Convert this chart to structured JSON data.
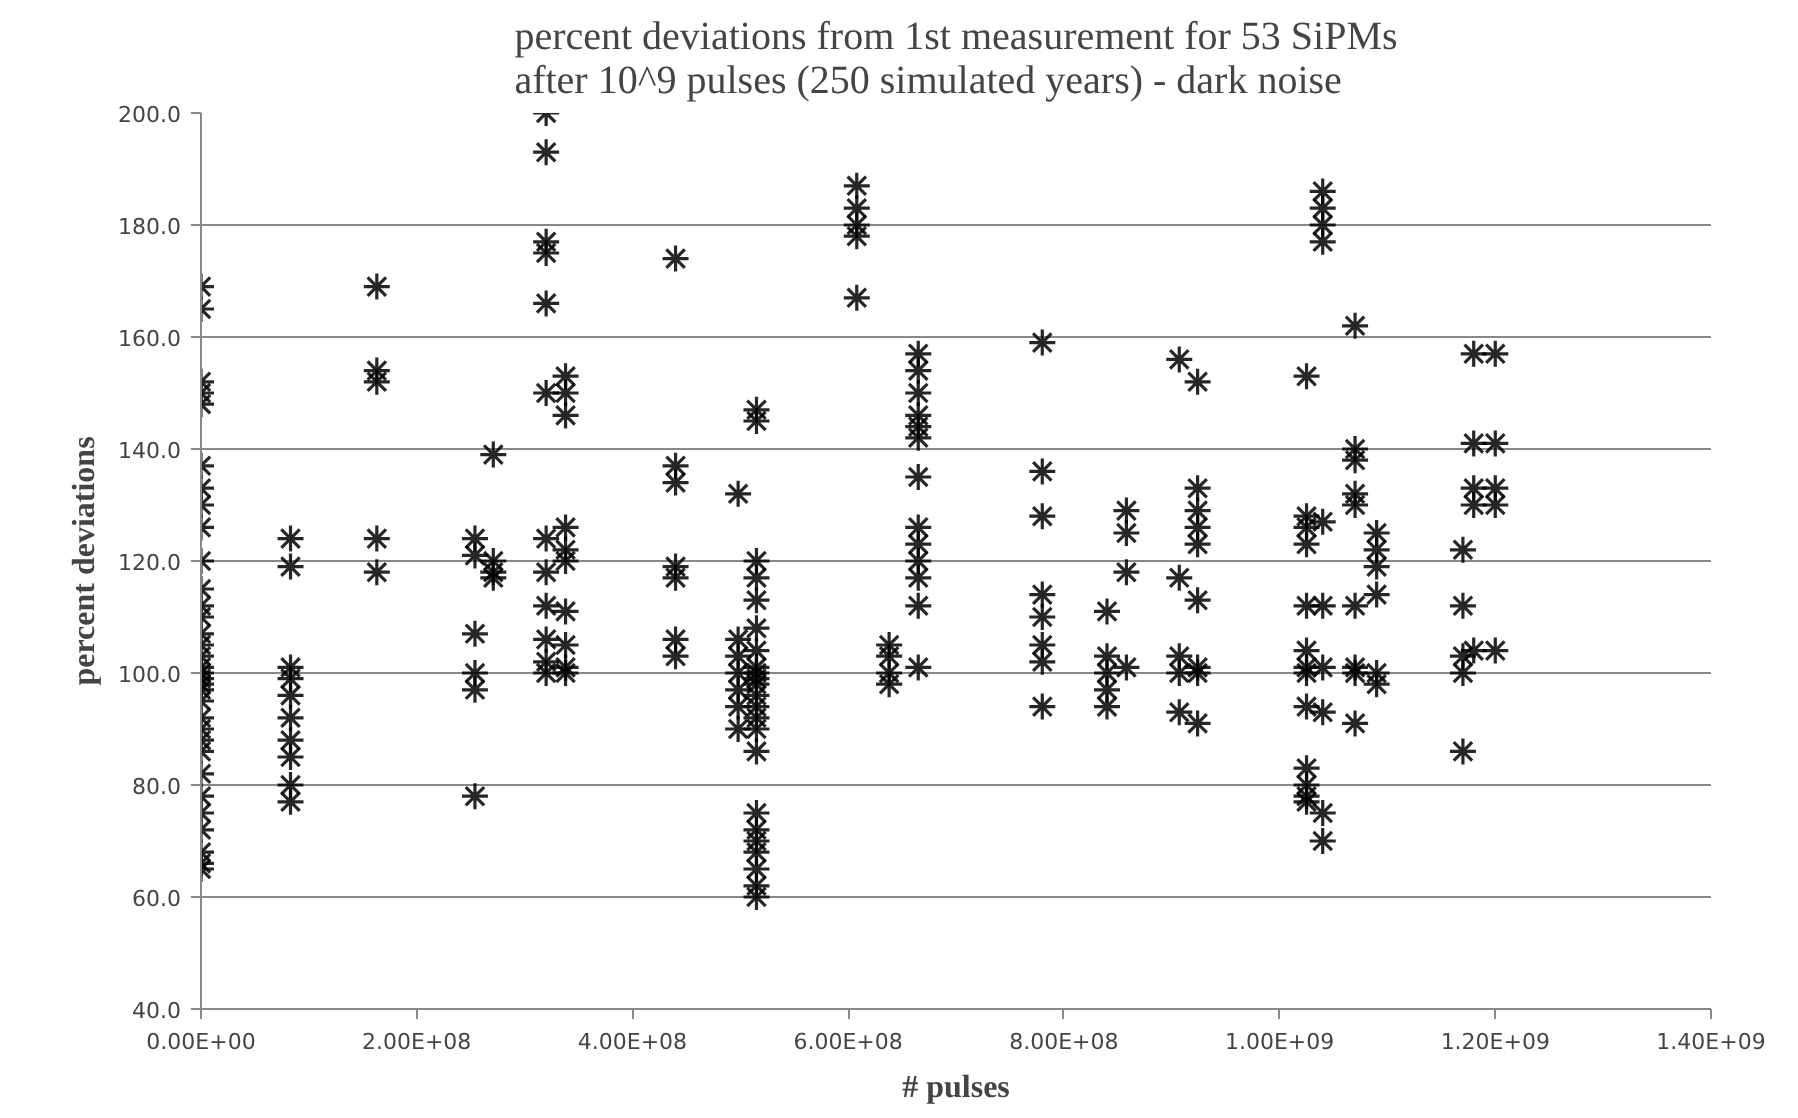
{
  "chart_data": {
    "type": "scatter",
    "title": "percent deviations from 1st measurement for 53 SiPMs\nafter 10^9 pulses (250 simulated years) - dark noise",
    "xlabel": "# pulses",
    "ylabel": "percent deviations",
    "marker": "cross",
    "grid": "y",
    "xlim": [
      0,
      1400000000.0
    ],
    "ylim": [
      40,
      200
    ],
    "xticks": [
      {
        "value": 0,
        "label": "0.00E+00"
      },
      {
        "value": 200000000.0,
        "label": "2.00E+08"
      },
      {
        "value": 400000000.0,
        "label": "4.00E+08"
      },
      {
        "value": 600000000.0,
        "label": "6.00E+08"
      },
      {
        "value": 800000000.0,
        "label": "8.00E+08"
      },
      {
        "value": 1000000000.0,
        "label": "1.00E+09"
      },
      {
        "value": 1200000000.0,
        "label": "1.20E+09"
      },
      {
        "value": 1400000000.0,
        "label": "1.40E+09"
      }
    ],
    "yticks": [
      {
        "value": 40,
        "label": "40.0"
      },
      {
        "value": 60,
        "label": "60.0"
      },
      {
        "value": 80,
        "label": "80.0"
      },
      {
        "value": 100,
        "label": "100.0"
      },
      {
        "value": 120,
        "label": "120.0"
      },
      {
        "value": 140,
        "label": "140.0"
      },
      {
        "value": 160,
        "label": "160.0"
      },
      {
        "value": 180,
        "label": "180.0"
      },
      {
        "value": 200,
        "label": "200.0"
      }
    ],
    "series": [
      {
        "color": "#000000",
        "x": [
          0,
          0,
          0,
          0,
          0,
          0,
          0,
          0,
          0,
          0,
          0,
          0,
          0,
          0,
          0,
          0,
          0,
          0,
          0,
          0,
          0,
          0,
          0,
          0,
          0,
          0,
          0,
          0,
          0,
          0,
          0,
          0,
          0,
          83000000.0,
          83000000.0,
          83000000.0,
          83000000.0,
          83000000.0,
          83000000.0,
          83000000.0,
          83000000.0,
          83000000.0,
          83000000.0,
          163000000.0,
          163000000.0,
          163000000.0,
          163000000.0,
          163000000.0,
          254000000.0,
          254000000.0,
          254000000.0,
          254000000.0,
          254000000.0,
          254000000.0,
          271000000.0,
          271000000.0,
          271000000.0,
          271000000.0,
          320000000.0,
          320000000.0,
          320000000.0,
          320000000.0,
          320000000.0,
          320000000.0,
          320000000.0,
          320000000.0,
          320000000.0,
          320000000.0,
          320000000.0,
          320000000.0,
          338000000.0,
          338000000.0,
          338000000.0,
          338000000.0,
          338000000.0,
          338000000.0,
          338000000.0,
          338000000.0,
          338000000.0,
          338000000.0,
          440000000.0,
          440000000.0,
          440000000.0,
          440000000.0,
          440000000.0,
          440000000.0,
          440000000.0,
          498000000.0,
          498000000.0,
          498000000.0,
          498000000.0,
          498000000.0,
          498000000.0,
          498000000.0,
          515000000.0,
          515000000.0,
          515000000.0,
          515000000.0,
          515000000.0,
          515000000.0,
          515000000.0,
          515000000.0,
          515000000.0,
          515000000.0,
          515000000.0,
          515000000.0,
          515000000.0,
          515000000.0,
          515000000.0,
          515000000.0,
          515000000.0,
          515000000.0,
          515000000.0,
          515000000.0,
          515000000.0,
          515000000.0,
          515000000.0,
          608000000.0,
          608000000.0,
          608000000.0,
          608000000.0,
          608000000.0,
          638000000.0,
          638000000.0,
          638000000.0,
          638000000.0,
          665000000.0,
          665000000.0,
          665000000.0,
          665000000.0,
          665000000.0,
          665000000.0,
          665000000.0,
          665000000.0,
          665000000.0,
          665000000.0,
          665000000.0,
          665000000.0,
          665000000.0,
          780000000.0,
          780000000.0,
          780000000.0,
          780000000.0,
          780000000.0,
          780000000.0,
          780000000.0,
          780000000.0,
          840000000.0,
          840000000.0,
          840000000.0,
          840000000.0,
          840000000.0,
          858000000.0,
          858000000.0,
          858000000.0,
          858000000.0,
          907000000.0,
          907000000.0,
          907000000.0,
          907000000.0,
          907000000.0,
          924000000.0,
          924000000.0,
          924000000.0,
          924000000.0,
          924000000.0,
          924000000.0,
          924000000.0,
          924000000.0,
          924000000.0,
          1025000000.0,
          1025000000.0,
          1025000000.0,
          1025000000.0,
          1025000000.0,
          1025000000.0,
          1025000000.0,
          1025000000.0,
          1025000000.0,
          1025000000.0,
          1025000000.0,
          1025000000.0,
          1025000000.0,
          1040000000.0,
          1040000000.0,
          1040000000.0,
          1040000000.0,
          1040000000.0,
          1040000000.0,
          1040000000.0,
          1040000000.0,
          1040000000.0,
          1040000000.0,
          1070000000.0,
          1070000000.0,
          1070000000.0,
          1070000000.0,
          1070000000.0,
          1070000000.0,
          1070000000.0,
          1070000000.0,
          1070000000.0,
          1090000000.0,
          1090000000.0,
          1090000000.0,
          1090000000.0,
          1090000000.0,
          1090000000.0,
          1170000000.0,
          1170000000.0,
          1170000000.0,
          1170000000.0,
          1170000000.0,
          1180000000.0,
          1180000000.0,
          1180000000.0,
          1180000000.0,
          1180000000.0,
          1200000000.0,
          1200000000.0,
          1200000000.0,
          1200000000.0,
          1200000000.0
        ],
        "values": [
          169,
          165,
          152,
          150,
          148,
          137,
          133,
          130,
          126,
          120,
          115,
          112,
          110,
          107,
          105,
          103,
          101,
          100,
          99,
          98,
          97,
          95,
          92,
          90,
          88,
          86,
          82,
          78,
          75,
          72,
          68,
          66,
          65,
          124,
          119,
          101,
          99,
          96,
          92,
          88,
          85,
          80,
          77,
          169,
          154,
          152,
          124,
          118,
          124,
          121,
          107,
          100,
          97,
          78,
          139,
          120,
          118,
          117,
          200,
          193,
          177,
          175,
          166,
          150,
          124,
          118,
          112,
          106,
          102,
          100,
          153,
          150,
          146,
          126,
          122,
          120,
          111,
          105,
          101,
          100,
          174,
          137,
          134,
          119,
          117,
          106,
          103,
          132,
          106,
          103,
          100,
          97,
          94,
          90,
          147,
          145,
          120,
          117,
          113,
          108,
          104,
          101,
          100,
          99,
          98,
          96,
          94,
          92,
          90,
          86,
          75,
          72,
          70,
          68,
          65,
          62,
          60,
          187,
          183,
          180,
          178,
          167,
          105,
          103,
          100,
          98,
          157,
          154,
          150,
          146,
          144,
          142,
          135,
          126,
          123,
          120,
          117,
          112,
          101,
          159,
          136,
          128,
          114,
          110,
          105,
          102,
          94,
          111,
          103,
          100,
          97,
          94,
          129,
          125,
          118,
          101,
          156,
          117,
          103,
          100,
          93,
          152,
          133,
          129,
          126,
          123,
          113,
          101,
          100,
          91,
          153,
          128,
          126,
          123,
          112,
          104,
          101,
          100,
          94,
          83,
          80,
          78,
          77,
          186,
          183,
          180,
          177,
          127,
          112,
          101,
          93,
          75,
          70,
          162,
          140,
          138,
          132,
          130,
          112,
          101,
          100,
          91,
          125,
          122,
          119,
          114,
          100,
          98,
          122,
          112,
          103,
          100,
          86,
          157,
          141,
          133,
          130,
          104,
          157,
          141,
          133,
          130,
          104
        ]
      }
    ]
  }
}
